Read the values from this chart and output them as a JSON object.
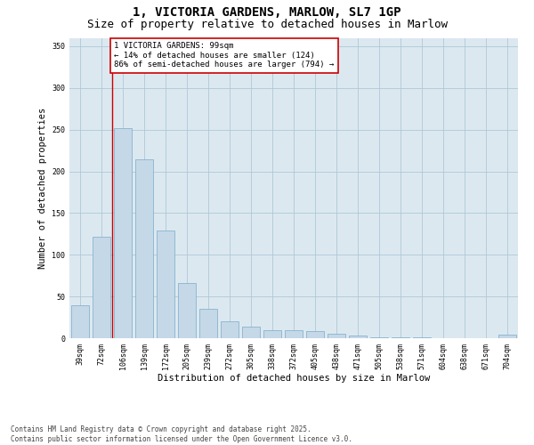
{
  "title_line1": "1, VICTORIA GARDENS, MARLOW, SL7 1GP",
  "title_line2": "Size of property relative to detached houses in Marlow",
  "xlabel": "Distribution of detached houses by size in Marlow",
  "ylabel": "Number of detached properties",
  "categories": [
    "39sqm",
    "72sqm",
    "106sqm",
    "139sqm",
    "172sqm",
    "205sqm",
    "239sqm",
    "272sqm",
    "305sqm",
    "338sqm",
    "372sqm",
    "405sqm",
    "438sqm",
    "471sqm",
    "505sqm",
    "538sqm",
    "571sqm",
    "604sqm",
    "638sqm",
    "671sqm",
    "704sqm"
  ],
  "values": [
    39,
    122,
    252,
    214,
    129,
    66,
    35,
    20,
    14,
    10,
    10,
    9,
    5,
    3,
    1,
    1,
    1,
    0,
    0,
    0,
    4
  ],
  "bar_color": "#c5d8e8",
  "bar_edge_color": "#7aaac8",
  "vline_color": "#cc0000",
  "annotation_text": "1 VICTORIA GARDENS: 99sqm\n← 14% of detached houses are smaller (124)\n86% of semi-detached houses are larger (794) →",
  "annotation_box_color": "#cc0000",
  "background_color": "#dce8f0",
  "ylim": [
    0,
    360
  ],
  "yticks": [
    0,
    50,
    100,
    150,
    200,
    250,
    300,
    350
  ],
  "footer_line1": "Contains HM Land Registry data © Crown copyright and database right 2025.",
  "footer_line2": "Contains public sector information licensed under the Open Government Licence v3.0.",
  "title_fontsize": 10,
  "subtitle_fontsize": 9,
  "axis_label_fontsize": 7.5,
  "tick_fontsize": 6,
  "annotation_fontsize": 6.5,
  "footer_fontsize": 5.5
}
